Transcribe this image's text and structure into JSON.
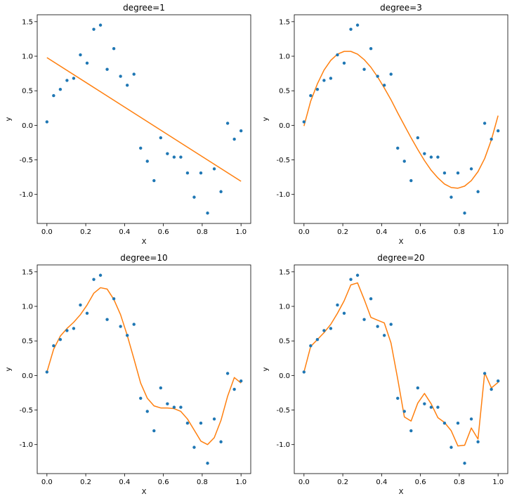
{
  "chart_data": [
    {
      "type": "scatter+line",
      "title": "degree=1",
      "xlabel": "X",
      "ylabel": "y",
      "xlim": [
        -0.05,
        1.05
      ],
      "ylim": [
        -1.42,
        1.6
      ],
      "xticks": [
        "0.0",
        "0.2",
        "0.4",
        "0.6",
        "0.8",
        "1.0"
      ],
      "yticks": [
        "-1.0",
        "-0.5",
        "0.0",
        "0.5",
        "1.0",
        "1.5"
      ],
      "scatter_color": "#1f77b4",
      "line_color": "#ff7f0e",
      "points": {
        "x": [
          0.0,
          0.0345,
          0.069,
          0.1034,
          0.1379,
          0.1724,
          0.2069,
          0.2414,
          0.2759,
          0.3103,
          0.3448,
          0.3793,
          0.4138,
          0.4483,
          0.4828,
          0.5172,
          0.5517,
          0.5862,
          0.6207,
          0.6552,
          0.6897,
          0.7241,
          0.7586,
          0.7931,
          0.8276,
          0.8621,
          0.8966,
          0.931,
          0.9655,
          1.0
        ],
        "y": [
          0.05,
          0.43,
          0.52,
          0.65,
          0.68,
          1.02,
          0.9,
          1.39,
          1.45,
          0.81,
          1.11,
          0.71,
          0.58,
          0.74,
          -0.33,
          -0.52,
          -0.8,
          -0.18,
          -0.41,
          -0.46,
          -0.46,
          -0.69,
          -1.04,
          -0.69,
          -1.27,
          -0.63,
          -0.96,
          0.03,
          -0.2,
          -0.08
        ]
      },
      "fit": {
        "x": [
          0.0,
          1.0
        ],
        "y": [
          0.98,
          -0.81
        ]
      }
    },
    {
      "type": "scatter+line",
      "title": "degree=3",
      "xlabel": "X",
      "ylabel": "y",
      "xlim": [
        -0.05,
        1.05
      ],
      "ylim": [
        -1.42,
        1.6
      ],
      "xticks": [
        "0.0",
        "0.2",
        "0.4",
        "0.6",
        "0.8",
        "1.0"
      ],
      "yticks": [
        "-1.0",
        "-0.5",
        "0.0",
        "0.5",
        "1.0",
        "1.5"
      ],
      "scatter_color": "#1f77b4",
      "line_color": "#ff7f0e",
      "points": {
        "x": [
          0.0,
          0.0345,
          0.069,
          0.1034,
          0.1379,
          0.1724,
          0.2069,
          0.2414,
          0.2759,
          0.3103,
          0.3448,
          0.3793,
          0.4138,
          0.4483,
          0.4828,
          0.5172,
          0.5517,
          0.5862,
          0.6207,
          0.6552,
          0.6897,
          0.7241,
          0.7586,
          0.7931,
          0.8276,
          0.8621,
          0.8966,
          0.931,
          0.9655,
          1.0
        ],
        "y": [
          0.05,
          0.43,
          0.52,
          0.65,
          0.68,
          1.02,
          0.9,
          1.39,
          1.45,
          0.81,
          1.11,
          0.71,
          0.58,
          0.74,
          -0.33,
          -0.52,
          -0.8,
          -0.18,
          -0.41,
          -0.46,
          -0.46,
          -0.69,
          -1.04,
          -0.69,
          -1.27,
          -0.63,
          -0.96,
          0.03,
          -0.2,
          -0.08
        ]
      },
      "fit": {
        "x": [
          0.0,
          0.0345,
          0.069,
          0.1034,
          0.1379,
          0.1724,
          0.2069,
          0.2414,
          0.2759,
          0.3103,
          0.3448,
          0.3793,
          0.4138,
          0.4483,
          0.4828,
          0.5172,
          0.5517,
          0.5862,
          0.6207,
          0.6552,
          0.6897,
          0.7241,
          0.7586,
          0.7931,
          0.8276,
          0.8621,
          0.8966,
          0.931,
          0.9655,
          1.0
        ],
        "y": [
          -0.01,
          0.35,
          0.6,
          0.8,
          0.94,
          1.03,
          1.07,
          1.07,
          1.03,
          0.95,
          0.84,
          0.7,
          0.54,
          0.37,
          0.18,
          0.0,
          -0.18,
          -0.35,
          -0.51,
          -0.65,
          -0.76,
          -0.85,
          -0.9,
          -0.91,
          -0.88,
          -0.8,
          -0.67,
          -0.48,
          -0.21,
          0.14
        ]
      }
    },
    {
      "type": "scatter+line",
      "title": "degree=10",
      "xlabel": "X",
      "ylabel": "y",
      "xlim": [
        -0.05,
        1.05
      ],
      "ylim": [
        -1.42,
        1.6
      ],
      "xticks": [
        "0.0",
        "0.2",
        "0.4",
        "0.6",
        "0.8",
        "1.0"
      ],
      "yticks": [
        "-1.0",
        "-0.5",
        "0.0",
        "0.5",
        "1.0",
        "1.5"
      ],
      "scatter_color": "#1f77b4",
      "line_color": "#ff7f0e",
      "points": {
        "x": [
          0.0,
          0.0345,
          0.069,
          0.1034,
          0.1379,
          0.1724,
          0.2069,
          0.2414,
          0.2759,
          0.3103,
          0.3448,
          0.3793,
          0.4138,
          0.4483,
          0.4828,
          0.5172,
          0.5517,
          0.5862,
          0.6207,
          0.6552,
          0.6897,
          0.7241,
          0.7586,
          0.7931,
          0.8276,
          0.8621,
          0.8966,
          0.931,
          0.9655,
          1.0
        ],
        "y": [
          0.05,
          0.43,
          0.52,
          0.65,
          0.68,
          1.02,
          0.9,
          1.39,
          1.45,
          0.81,
          1.11,
          0.71,
          0.58,
          0.74,
          -0.33,
          -0.52,
          -0.8,
          -0.18,
          -0.41,
          -0.46,
          -0.46,
          -0.69,
          -1.04,
          -0.69,
          -1.27,
          -0.63,
          -0.96,
          0.03,
          -0.2,
          -0.08
        ]
      },
      "fit": {
        "x": [
          0.0,
          0.0345,
          0.069,
          0.1034,
          0.1379,
          0.1724,
          0.2069,
          0.2414,
          0.2759,
          0.3103,
          0.3448,
          0.3793,
          0.4138,
          0.4483,
          0.4828,
          0.5172,
          0.5517,
          0.5862,
          0.6207,
          0.6552,
          0.6897,
          0.7241,
          0.7586,
          0.7931,
          0.8276,
          0.8621,
          0.8966,
          0.931,
          0.9655,
          1.0
        ],
        "y": [
          0.05,
          0.38,
          0.57,
          0.68,
          0.77,
          0.88,
          1.02,
          1.19,
          1.27,
          1.25,
          1.1,
          0.88,
          0.58,
          0.24,
          -0.11,
          -0.33,
          -0.44,
          -0.47,
          -0.47,
          -0.48,
          -0.52,
          -0.63,
          -0.79,
          -0.95,
          -1.0,
          -0.9,
          -0.65,
          -0.3,
          -0.03,
          -0.11
        ]
      }
    },
    {
      "type": "scatter+line",
      "title": "degree=20",
      "xlabel": "X",
      "ylabel": "y",
      "xlim": [
        -0.05,
        1.05
      ],
      "ylim": [
        -1.42,
        1.6
      ],
      "xticks": [
        "0.0",
        "0.2",
        "0.4",
        "0.6",
        "0.8",
        "1.0"
      ],
      "yticks": [
        "-1.0",
        "-0.5",
        "0.0",
        "0.5",
        "1.0",
        "1.5"
      ],
      "scatter_color": "#1f77b4",
      "line_color": "#ff7f0e",
      "points": {
        "x": [
          0.0,
          0.0345,
          0.069,
          0.1034,
          0.1379,
          0.1724,
          0.2069,
          0.2414,
          0.2759,
          0.3103,
          0.3448,
          0.3793,
          0.4138,
          0.4483,
          0.4828,
          0.5172,
          0.5517,
          0.5862,
          0.6207,
          0.6552,
          0.6897,
          0.7241,
          0.7586,
          0.7931,
          0.8276,
          0.8621,
          0.8966,
          0.931,
          0.9655,
          1.0
        ],
        "y": [
          0.05,
          0.43,
          0.52,
          0.65,
          0.68,
          1.02,
          0.9,
          1.39,
          1.45,
          0.81,
          1.11,
          0.71,
          0.58,
          0.74,
          -0.33,
          -0.52,
          -0.8,
          -0.18,
          -0.41,
          -0.46,
          -0.46,
          -0.69,
          -1.04,
          -0.69,
          -1.27,
          -0.63,
          -0.96,
          0.03,
          -0.2,
          -0.08
        ]
      },
      "fit": {
        "x": [
          0.0,
          0.0345,
          0.069,
          0.1034,
          0.1379,
          0.1724,
          0.2069,
          0.2414,
          0.2759,
          0.3103,
          0.3448,
          0.3793,
          0.4138,
          0.4483,
          0.4828,
          0.5172,
          0.5517,
          0.5862,
          0.6207,
          0.6552,
          0.6897,
          0.7241,
          0.7586,
          0.7931,
          0.8276,
          0.8621,
          0.8966,
          0.931,
          0.9655,
          1.0
        ],
        "y": [
          0.05,
          0.42,
          0.52,
          0.62,
          0.74,
          0.9,
          1.08,
          1.31,
          1.34,
          1.1,
          0.84,
          0.8,
          0.76,
          0.47,
          -0.05,
          -0.6,
          -0.66,
          -0.4,
          -0.26,
          -0.41,
          -0.61,
          -0.68,
          -0.8,
          -1.02,
          -1.01,
          -0.76,
          -0.92,
          0.04,
          -0.18,
          -0.1
        ]
      }
    }
  ]
}
